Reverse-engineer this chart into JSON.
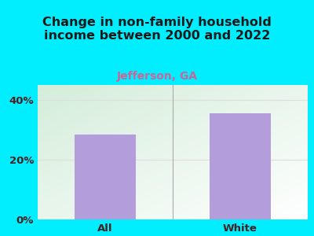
{
  "categories": [
    "All",
    "White"
  ],
  "values": [
    28.5,
    35.5
  ],
  "bar_color": "#b39ddb",
  "title": "Change in non-family household\nincome between 2000 and 2022",
  "subtitle": "Jefferson, GA",
  "subtitle_color": "#cc6699",
  "title_color": "#1a1a1a",
  "title_fontsize": 11.5,
  "subtitle_fontsize": 10,
  "ylim": [
    0,
    45
  ],
  "yticks": [
    0,
    20,
    40
  ],
  "ytick_labels": [
    "0%",
    "20%",
    "40%"
  ],
  "background_color": "#00eeff",
  "tick_label_color": "#4a2020",
  "tick_label_fontsize": 9.5,
  "bar_width": 0.45,
  "divider_color": "#aaaaaa",
  "grid_color": "#dddddd"
}
